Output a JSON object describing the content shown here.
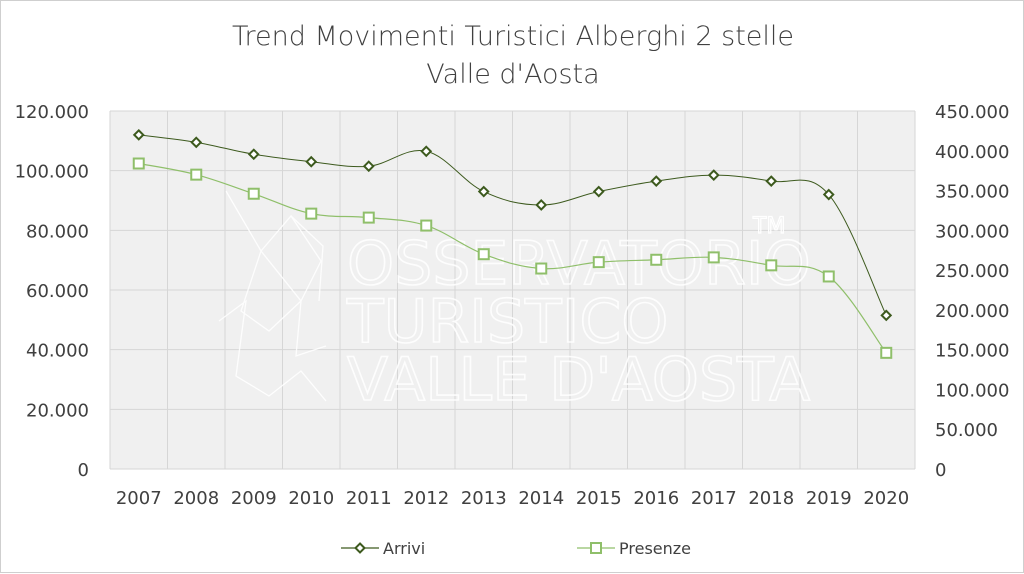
{
  "chart_data": {
    "type": "line",
    "title": "Trend Movimenti Turistici Alberghi 2 stelle",
    "subtitle": "Valle d'Aosta",
    "categories": [
      "2007",
      "2008",
      "2009",
      "2010",
      "2011",
      "2012",
      "2013",
      "2014",
      "2015",
      "2016",
      "2017",
      "2018",
      "2019",
      "2020"
    ],
    "y_left": {
      "ylim": [
        0,
        120000
      ],
      "ticks": [
        "0",
        "20.000",
        "40.000",
        "60.000",
        "80.000",
        "100.000",
        "120.000"
      ]
    },
    "y_right": {
      "ylim": [
        0,
        450000
      ],
      "ticks": [
        "0",
        "50.000",
        "100.000",
        "150.000",
        "200.000",
        "250.000",
        "300.000",
        "350.000",
        "400.000",
        "450.000"
      ]
    },
    "series": [
      {
        "name": "Arrivi",
        "axis": "left",
        "marker": "diamond",
        "color": "#3d5a1e",
        "values": [
          112000,
          109500,
          105500,
          103000,
          101500,
          106500,
          93000,
          88500,
          93000,
          96500,
          98500,
          96500,
          92000,
          51500
        ]
      },
      {
        "name": "Presenze",
        "axis": "right",
        "marker": "square",
        "color": "#8fbf6a",
        "values": [
          384000,
          370000,
          346000,
          321000,
          316000,
          306000,
          270000,
          252000,
          260000,
          263000,
          266000,
          256000,
          242000,
          146000
        ]
      }
    ],
    "grid": true,
    "legend": "bottom",
    "watermark": [
      "OSSERVATORIO",
      "TURISTICO",
      "VALLE D'AOSTA",
      "TM"
    ]
  }
}
